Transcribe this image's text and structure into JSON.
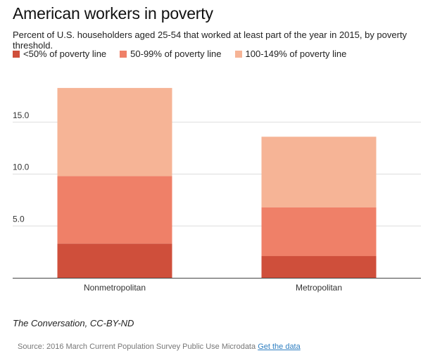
{
  "chart_data": {
    "type": "bar",
    "stacked": true,
    "title": "American workers in poverty",
    "subtitle": "Percent of U.S. householders aged 25-54 that worked at least part of the year in 2015, by poverty threshold.",
    "categories": [
      "Nonmetropolitan",
      "Metropolitan"
    ],
    "series": [
      {
        "name": "<50% of poverty line",
        "color": "#cf4f3b",
        "values": [
          3.3,
          2.1
        ]
      },
      {
        "name": "50-99% of poverty line",
        "color": "#ef8068",
        "values": [
          6.5,
          4.7
        ]
      },
      {
        "name": "100-149% of poverty line",
        "color": "#f6b496",
        "values": [
          8.5,
          6.8
        ]
      }
    ],
    "ylim": [
      0,
      20
    ],
    "yticks": [
      5,
      10,
      15
    ],
    "ytick_labels": [
      "5.0",
      "10.0",
      "15.0"
    ],
    "xlabel": "",
    "ylabel": "",
    "grid": true,
    "legend_position": "top"
  },
  "credit": "The Conversation, CC-BY-ND",
  "source": {
    "text": "Source: 2016 March Current Population Survey Public Use Microdata",
    "link_label": "Get the data"
  }
}
